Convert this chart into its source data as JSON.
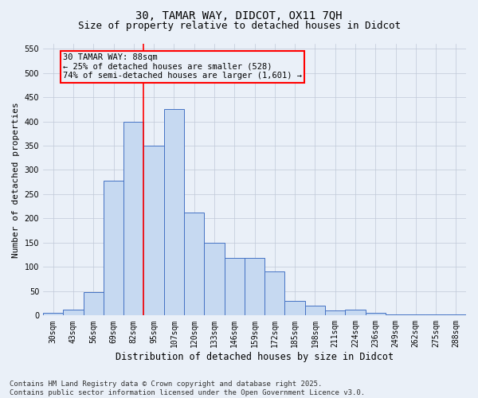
{
  "title_line1": "30, TAMAR WAY, DIDCOT, OX11 7QH",
  "title_line2": "Size of property relative to detached houses in Didcot",
  "xlabel": "Distribution of detached houses by size in Didcot",
  "ylabel": "Number of detached properties",
  "categories": [
    "30sqm",
    "43sqm",
    "56sqm",
    "69sqm",
    "82sqm",
    "95sqm",
    "107sqm",
    "120sqm",
    "133sqm",
    "146sqm",
    "159sqm",
    "172sqm",
    "185sqm",
    "198sqm",
    "211sqm",
    "224sqm",
    "236sqm",
    "249sqm",
    "262sqm",
    "275sqm",
    "288sqm"
  ],
  "values": [
    5,
    12,
    48,
    277,
    400,
    350,
    425,
    213,
    150,
    118,
    118,
    90,
    30,
    20,
    10,
    12,
    5,
    3,
    2,
    2,
    3
  ],
  "bar_color": "#c6d9f1",
  "bar_edge_color": "#4472c4",
  "annotation_text_line1": "30 TAMAR WAY: 88sqm",
  "annotation_text_line2": "← 25% of detached houses are smaller (528)",
  "annotation_text_line3": "74% of semi-detached houses are larger (1,601) →",
  "box_edge_color": "red",
  "vline_x": 4.5,
  "ylim": [
    0,
    560
  ],
  "yticks": [
    0,
    50,
    100,
    150,
    200,
    250,
    300,
    350,
    400,
    450,
    500,
    550
  ],
  "grid_color": "#c0c8d8",
  "background_color": "#eaf0f8",
  "footer_text": "Contains HM Land Registry data © Crown copyright and database right 2025.\nContains public sector information licensed under the Open Government Licence v3.0.",
  "title_fontsize": 10,
  "subtitle_fontsize": 9,
  "ylabel_fontsize": 8,
  "xlabel_fontsize": 8.5,
  "tick_fontsize": 7,
  "footer_fontsize": 6.5,
  "annotation_fontsize": 7.5
}
